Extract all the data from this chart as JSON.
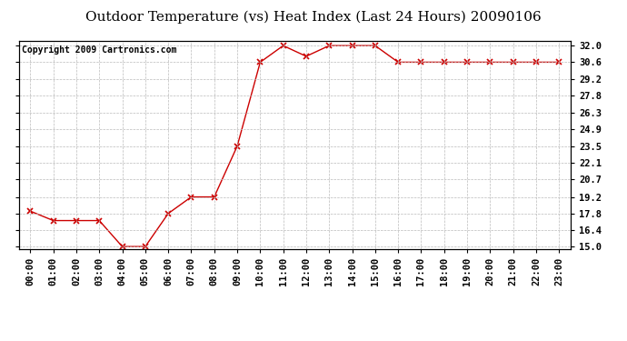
{
  "title": "Outdoor Temperature (vs) Heat Index (Last 24 Hours) 20090106",
  "copyright": "Copyright 2009 Cartronics.com",
  "x_labels": [
    "00:00",
    "01:00",
    "02:00",
    "03:00",
    "04:00",
    "05:00",
    "06:00",
    "07:00",
    "08:00",
    "09:00",
    "10:00",
    "11:00",
    "12:00",
    "13:00",
    "14:00",
    "15:00",
    "16:00",
    "17:00",
    "18:00",
    "19:00",
    "20:00",
    "21:00",
    "22:00",
    "23:00"
  ],
  "y_values": [
    18.0,
    17.2,
    17.2,
    17.2,
    15.0,
    15.0,
    17.8,
    19.2,
    19.2,
    23.5,
    30.6,
    32.0,
    31.1,
    32.0,
    32.0,
    32.0,
    30.6,
    30.6,
    30.6,
    30.6,
    30.6,
    30.6,
    30.6,
    30.6
  ],
  "y_ticks": [
    15.0,
    16.4,
    17.8,
    19.2,
    20.7,
    22.1,
    23.5,
    24.9,
    26.3,
    27.8,
    29.2,
    30.6,
    32.0
  ],
  "ylim": [
    14.8,
    32.4
  ],
  "line_color": "#cc0000",
  "marker": "x",
  "background_color": "#ffffff",
  "grid_color": "#bbbbbb",
  "title_fontsize": 11,
  "tick_fontsize": 7.5,
  "copyright_fontsize": 7
}
